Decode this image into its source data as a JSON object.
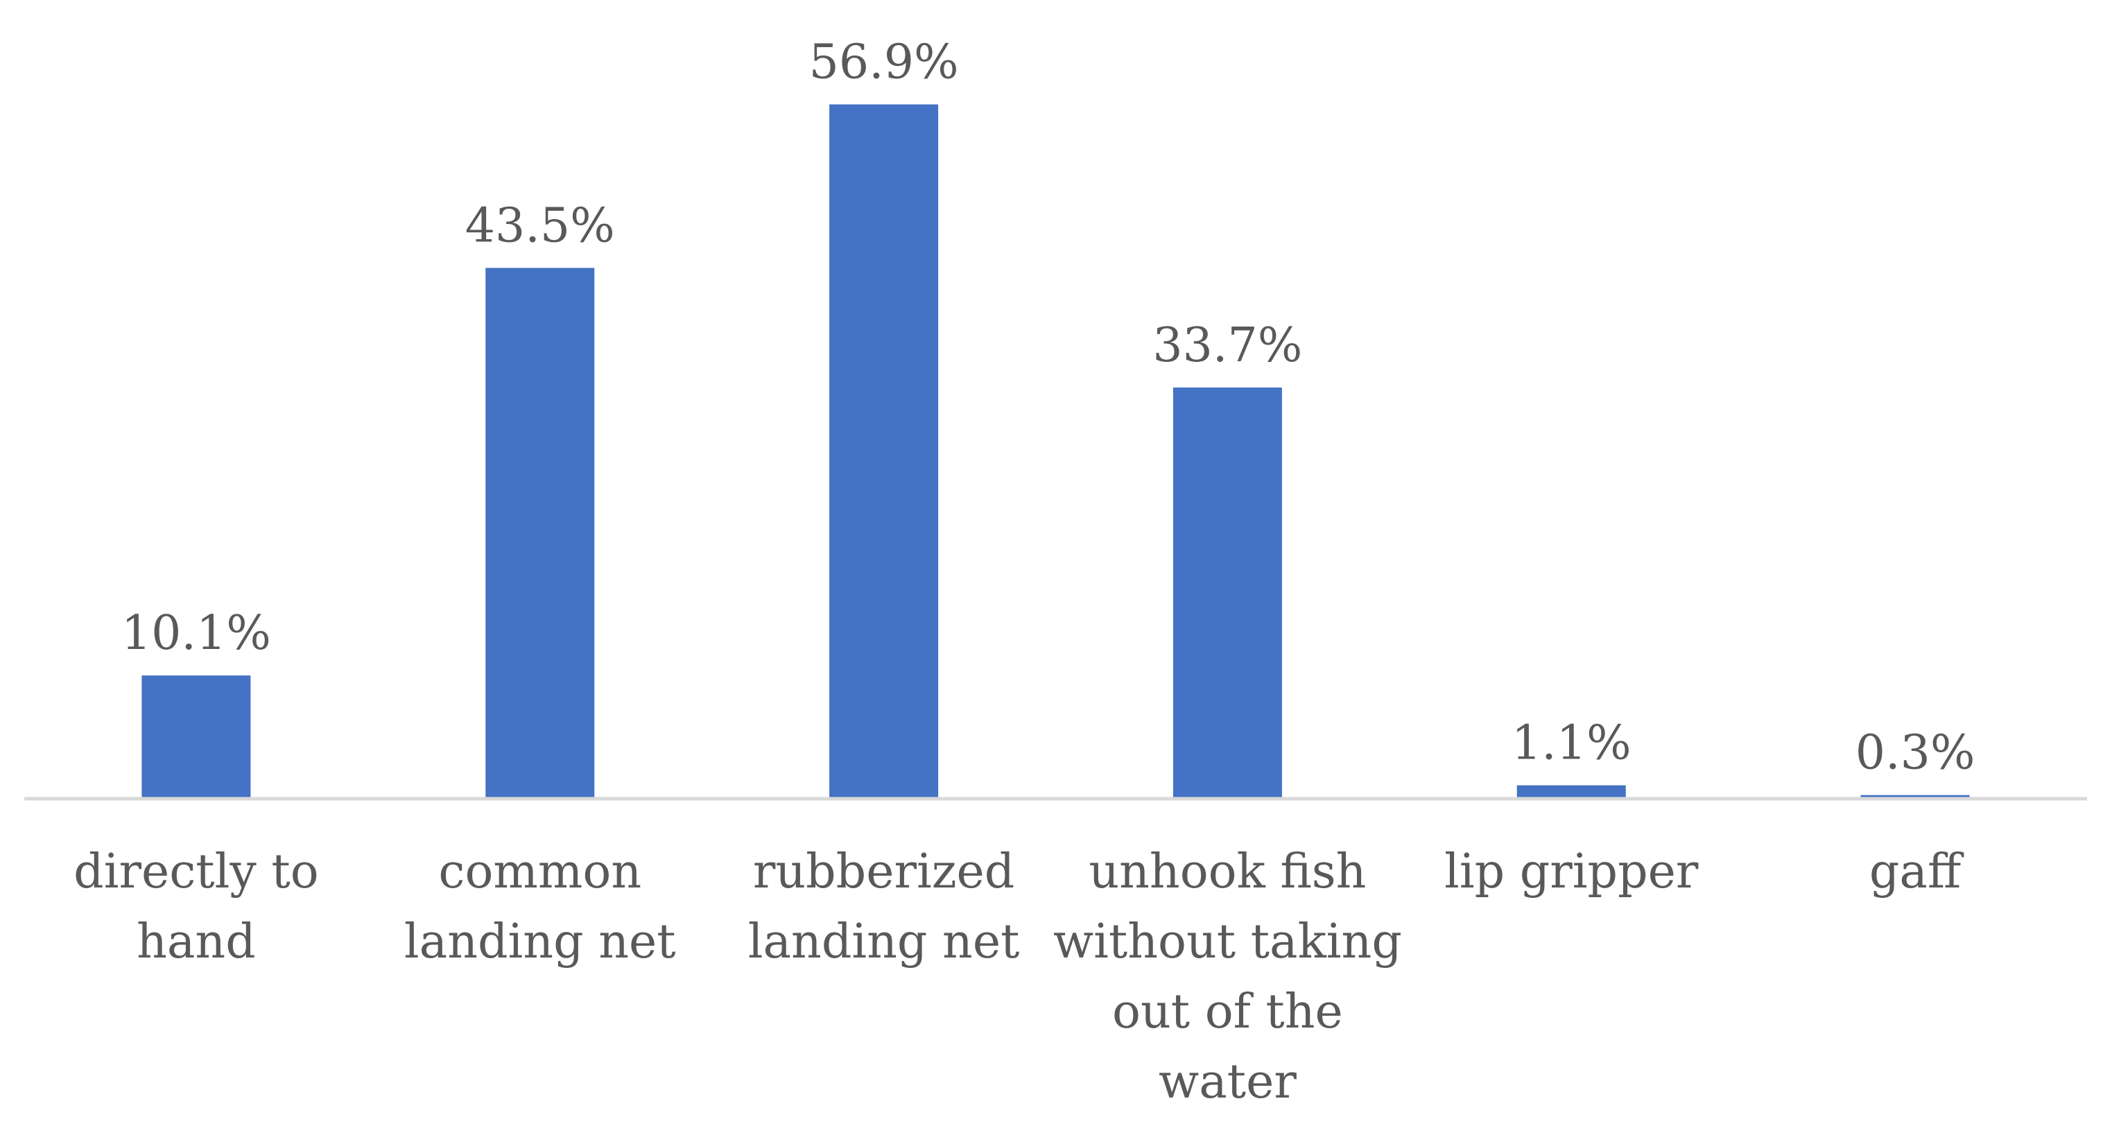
{
  "chart_data": {
    "type": "bar",
    "categories": [
      [
        "directly to",
        "hand"
      ],
      [
        "common",
        "landing net"
      ],
      [
        "rubberized",
        "landing net"
      ],
      [
        "unhook fish",
        "without taking",
        "out of the",
        "water"
      ],
      [
        "lip gripper"
      ],
      [
        "gaff"
      ]
    ],
    "values": [
      10.1,
      43.5,
      56.9,
      33.7,
      1.1,
      0.3
    ],
    "data_labels": [
      "10.1%",
      "43.5%",
      "56.9%",
      "33.7%",
      "1.1%",
      "0.3%"
    ],
    "title": "",
    "xlabel": "",
    "ylabel": "",
    "ylim": [
      0,
      60
    ],
    "grid": false,
    "legend": "none",
    "colors": {
      "bar": "#4472C4",
      "axis": "#D9D9D9",
      "text": "#595959"
    }
  }
}
